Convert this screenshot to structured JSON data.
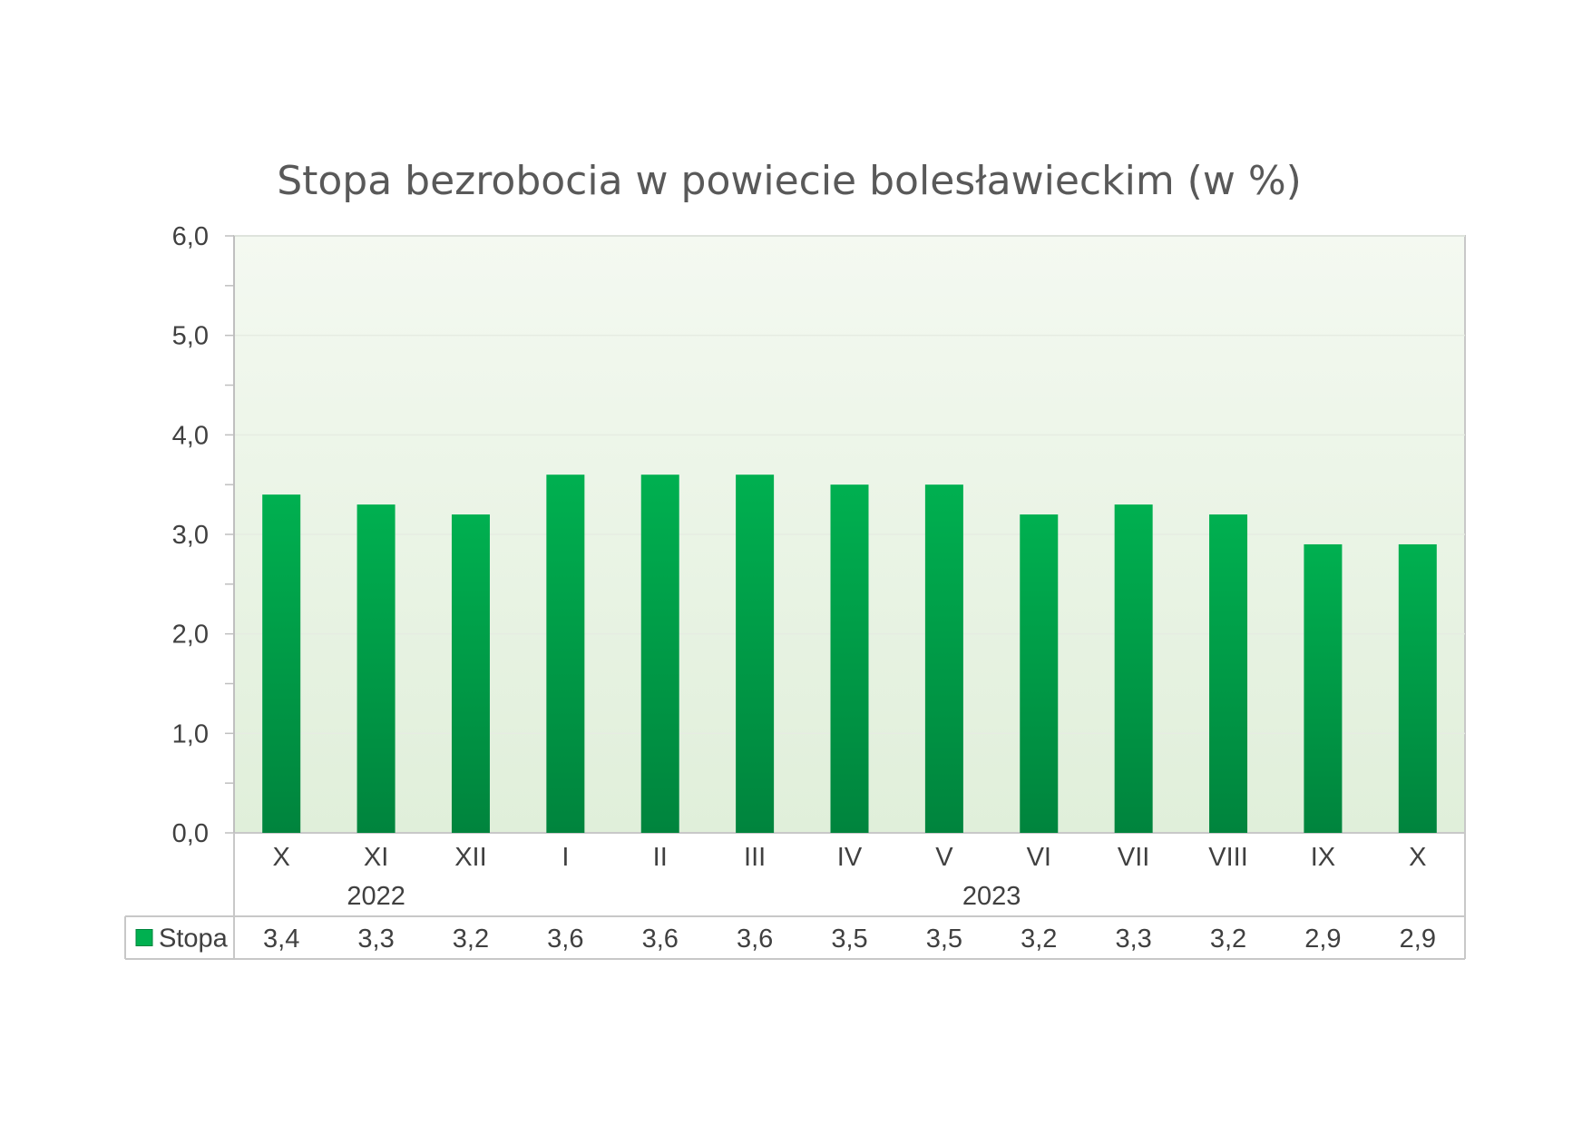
{
  "chart_data": {
    "type": "bar",
    "title": "Stopa bezrobocia w powiecie bolesławieckim (w %)",
    "categories": [
      "X",
      "XI",
      "XII",
      "I",
      "II",
      "III",
      "IV",
      "V",
      "VI",
      "VII",
      "VIII",
      "IX",
      "X"
    ],
    "groups": [
      {
        "label": "2022",
        "start": 0,
        "end": 2
      },
      {
        "label": "2023",
        "start": 3,
        "end": 12
      }
    ],
    "series": [
      {
        "name": "Stopa",
        "values": [
          3.4,
          3.3,
          3.2,
          3.6,
          3.6,
          3.6,
          3.5,
          3.5,
          3.2,
          3.3,
          3.2,
          2.9,
          2.9
        ],
        "labels": [
          "3,4",
          "3,3",
          "3,2",
          "3,6",
          "3,6",
          "3,6",
          "3,5",
          "3,5",
          "3,2",
          "3,3",
          "3,2",
          "2,9",
          "2,9"
        ]
      }
    ],
    "ylim": [
      0,
      6
    ],
    "yticks": [
      0,
      1,
      2,
      3,
      4,
      5,
      6
    ],
    "ytick_labels": [
      "0,0",
      "1,0",
      "2,0",
      "3,0",
      "4,0",
      "5,0",
      "6,0"
    ],
    "grid": true,
    "legend": "data-table",
    "colors": {
      "bar_top": "#00b050",
      "bar_bottom": "#00843d",
      "plot_top": "#f4f9f1",
      "plot_bottom": "#e0efda",
      "border": "#c8c8c8"
    }
  }
}
